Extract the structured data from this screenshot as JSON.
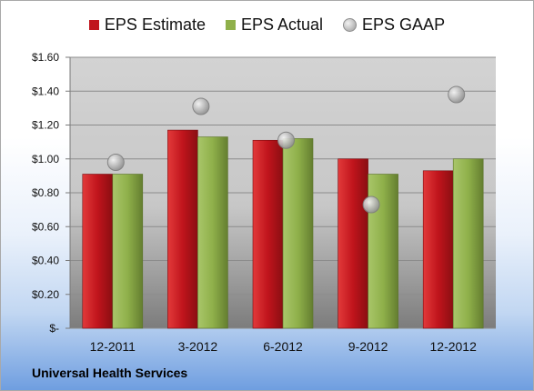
{
  "chart_data": {
    "type": "bar",
    "categories": [
      "12-2011",
      "3-2012",
      "6-2012",
      "9-2012",
      "12-2012"
    ],
    "series": [
      {
        "name": "EPS Estimate",
        "kind": "bar",
        "color": "#c0141c",
        "values": [
          0.91,
          1.17,
          1.11,
          1.0,
          0.93
        ]
      },
      {
        "name": "EPS Actual",
        "kind": "bar",
        "color": "#8fb04a",
        "values": [
          0.91,
          1.13,
          1.12,
          0.91,
          1.0
        ]
      },
      {
        "name": "EPS GAAP",
        "kind": "marker",
        "color": "#b5b5b5",
        "values": [
          0.98,
          1.31,
          1.11,
          0.73,
          1.38
        ]
      }
    ],
    "ylim": [
      0,
      1.6
    ],
    "yticks": [
      0,
      0.2,
      0.4,
      0.6,
      0.8,
      1.0,
      1.2,
      1.4,
      1.6
    ],
    "ytick_labels": [
      "$-",
      "$0.20",
      "$0.40",
      "$0.60",
      "$0.80",
      "$1.00",
      "$1.20",
      "$1.40",
      "$1.60"
    ],
    "grid": true,
    "legend_position": "top-center"
  },
  "footer": {
    "company": "Universal Health Services"
  }
}
